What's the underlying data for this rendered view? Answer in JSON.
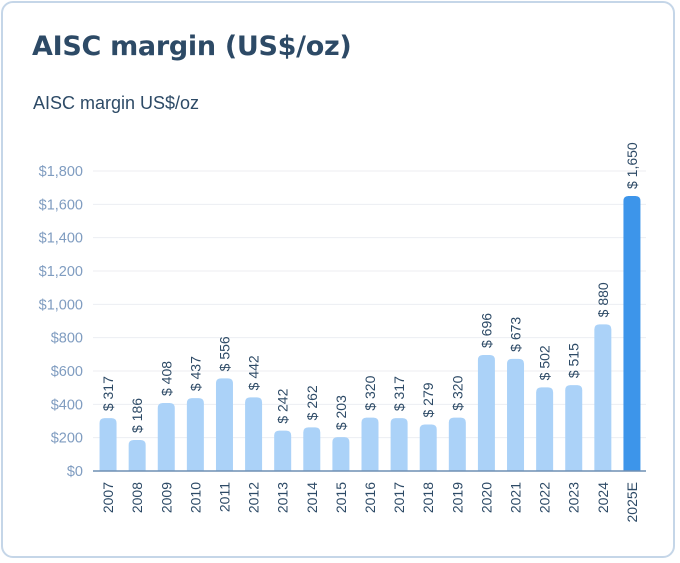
{
  "card": {
    "title": "AISC margin (US$/oz)"
  },
  "chart_data": {
    "type": "bar",
    "title": "AISC margin US$/oz",
    "xlabel": "",
    "ylabel": "",
    "ylim": [
      0,
      1800
    ],
    "yticks": [
      0,
      200,
      400,
      600,
      800,
      1000,
      1200,
      1400,
      1600,
      1800
    ],
    "ytick_labels": [
      "$0",
      "$200",
      "$400",
      "$600",
      "$800",
      "$1,000",
      "$1,200",
      "$1,400",
      "$1,600",
      "$1,800"
    ],
    "grid": true,
    "categories": [
      "2007",
      "2008",
      "2009",
      "2010",
      "2011",
      "2012",
      "2013",
      "2014",
      "2015",
      "2016",
      "2017",
      "2018",
      "2019",
      "2020",
      "2021",
      "2022",
      "2023",
      "2024",
      "2025E"
    ],
    "values": [
      317,
      186,
      408,
      437,
      556,
      442,
      242,
      262,
      203,
      320,
      317,
      279,
      320,
      696,
      673,
      502,
      515,
      880,
      1650
    ],
    "data_labels": [
      "$ 317",
      "$ 186",
      "$ 408",
      "$ 437",
      "$ 556",
      "$ 442",
      "$ 242",
      "$ 262",
      "$ 203",
      "$ 320",
      "$ 317",
      "$ 279",
      "$ 320",
      "$ 696",
      "$ 673",
      "$ 502",
      "$ 515",
      "$ 880",
      "$ 1,650"
    ],
    "highlight_index": 18,
    "colors": {
      "bar": "#abd2f8",
      "highlight": "#3d95ea",
      "grid": "#eceef2",
      "axis": "#6f8fb3"
    }
  }
}
